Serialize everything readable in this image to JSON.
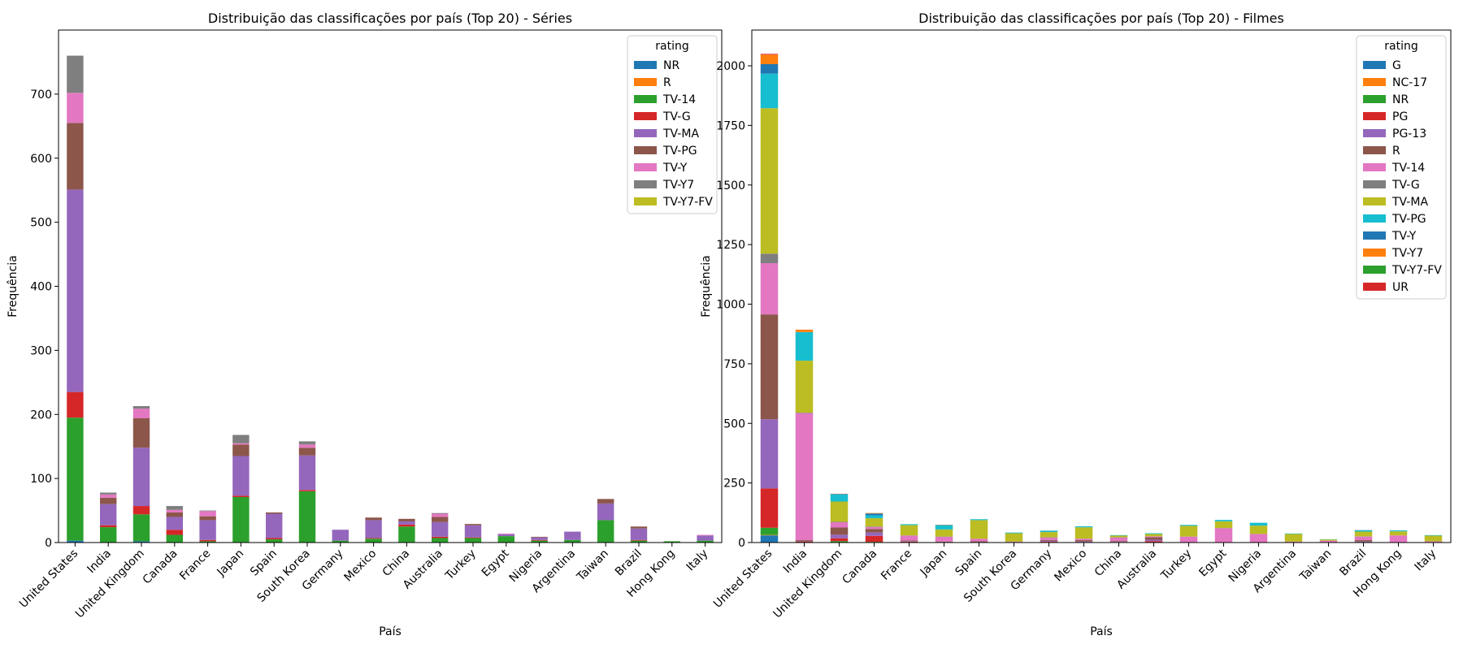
{
  "colors": {
    "tab10": [
      "#1f77b4",
      "#ff7f0e",
      "#2ca02c",
      "#d62728",
      "#9467bd",
      "#8c564b",
      "#e377c2",
      "#7f7f7f",
      "#bcbd22",
      "#17becf"
    ]
  },
  "chart_data": [
    {
      "type": "bar",
      "stacked": true,
      "title": "Distribuição das classificações por país (Top 20) - Séries",
      "xlabel": "País",
      "ylabel": "Frequência",
      "ylim": [
        0,
        800
      ],
      "yticks": [
        0,
        100,
        200,
        300,
        400,
        500,
        600,
        700
      ],
      "grid": false,
      "legend_title": "rating",
      "legend_position": "top-right",
      "categories": [
        "United States",
        "India",
        "United Kingdom",
        "Canada",
        "France",
        "Japan",
        "Spain",
        "South Korea",
        "Germany",
        "Mexico",
        "China",
        "Australia",
        "Turkey",
        "Egypt",
        "Nigeria",
        "Argentina",
        "Taiwan",
        "Brazil",
        "Hong Kong",
        "Italy"
      ],
      "series": [
        {
          "name": "NR",
          "values": [
            3,
            0,
            2,
            0,
            0,
            0,
            0,
            0,
            0,
            0,
            0,
            0,
            0,
            0,
            0,
            0,
            0,
            0,
            0,
            0
          ]
        },
        {
          "name": "R",
          "values": [
            0,
            0,
            0,
            0,
            0,
            0,
            0,
            0,
            0,
            0,
            0,
            0,
            0,
            0,
            0,
            0,
            0,
            0,
            0,
            0
          ]
        },
        {
          "name": "TV-14",
          "values": [
            192,
            24,
            42,
            12,
            2,
            71,
            5,
            80,
            3,
            6,
            25,
            7,
            7,
            10,
            3,
            4,
            35,
            3,
            2,
            3
          ]
        },
        {
          "name": "TV-G",
          "values": [
            40,
            3,
            13,
            8,
            2,
            2,
            2,
            2,
            0,
            1,
            3,
            2,
            1,
            0,
            1,
            0,
            0,
            1,
            0,
            0
          ]
        },
        {
          "name": "TV-MA",
          "values": [
            316,
            33,
            91,
            20,
            31,
            62,
            38,
            54,
            17,
            28,
            5,
            23,
            19,
            3,
            4,
            13,
            26,
            18,
            0,
            8
          ]
        },
        {
          "name": "TV-PG",
          "values": [
            104,
            10,
            46,
            7,
            6,
            18,
            2,
            12,
            0,
            4,
            4,
            8,
            2,
            0,
            1,
            0,
            7,
            3,
            0,
            0
          ]
        },
        {
          "name": "TV-Y",
          "values": [
            47,
            5,
            15,
            4,
            8,
            2,
            0,
            5,
            0,
            0,
            0,
            5,
            0,
            1,
            0,
            0,
            0,
            0,
            0,
            1
          ]
        },
        {
          "name": "TV-Y7",
          "values": [
            58,
            3,
            4,
            6,
            1,
            13,
            0,
            5,
            0,
            0,
            0,
            1,
            0,
            0,
            0,
            0,
            0,
            0,
            0,
            0
          ]
        },
        {
          "name": "TV-Y7-FV",
          "values": [
            0,
            0,
            0,
            0,
            0,
            0,
            0,
            0,
            0,
            0,
            0,
            0,
            0,
            0,
            0,
            0,
            0,
            0,
            0,
            0
          ]
        }
      ]
    },
    {
      "type": "bar",
      "stacked": true,
      "title": "Distribuição das classificações por país (Top 20) - Filmes",
      "xlabel": "País",
      "ylabel": "Frequência",
      "ylim": [
        0,
        2150
      ],
      "yticks": [
        0,
        250,
        500,
        750,
        1000,
        1250,
        1500,
        1750,
        2000
      ],
      "grid": false,
      "legend_title": "rating",
      "legend_position": "top-right",
      "categories": [
        "United States",
        "India",
        "United Kingdom",
        "Canada",
        "France",
        "Japan",
        "Spain",
        "South Korea",
        "Germany",
        "Mexico",
        "China",
        "Australia",
        "Turkey",
        "Egypt",
        "Nigeria",
        "Argentina",
        "Taiwan",
        "Brazil",
        "Hong Kong",
        "Italy"
      ],
      "series": [
        {
          "name": "G",
          "values": [
            30,
            0,
            1,
            1,
            0,
            0,
            0,
            0,
            1,
            0,
            0,
            0,
            0,
            0,
            0,
            0,
            0,
            0,
            0,
            0
          ]
        },
        {
          "name": "NC-17",
          "values": [
            2,
            0,
            0,
            0,
            0,
            0,
            0,
            0,
            0,
            0,
            0,
            0,
            0,
            0,
            0,
            0,
            0,
            0,
            0,
            0
          ]
        },
        {
          "name": "NR",
          "values": [
            30,
            1,
            5,
            2,
            1,
            0,
            0,
            0,
            1,
            0,
            0,
            0,
            0,
            0,
            0,
            0,
            0,
            0,
            0,
            0
          ]
        },
        {
          "name": "PG",
          "values": [
            165,
            3,
            12,
            25,
            3,
            1,
            1,
            0,
            2,
            2,
            2,
            6,
            0,
            0,
            0,
            0,
            0,
            2,
            0,
            0
          ]
        },
        {
          "name": "PG-13",
          "values": [
            290,
            1,
            15,
            14,
            2,
            1,
            1,
            1,
            3,
            2,
            1,
            6,
            0,
            0,
            0,
            0,
            0,
            2,
            0,
            1
          ]
        },
        {
          "name": "R",
          "values": [
            440,
            5,
            30,
            15,
            3,
            2,
            3,
            1,
            4,
            6,
            3,
            10,
            0,
            0,
            0,
            1,
            0,
            6,
            1,
            1
          ]
        },
        {
          "name": "TV-14",
          "values": [
            215,
            533,
            22,
            8,
            20,
            20,
            11,
            2,
            10,
            6,
            15,
            4,
            25,
            60,
            36,
            3,
            8,
            15,
            29,
            3
          ]
        },
        {
          "name": "TV-G",
          "values": [
            40,
            2,
            2,
            2,
            1,
            1,
            0,
            0,
            1,
            0,
            1,
            0,
            0,
            1,
            0,
            0,
            0,
            1,
            0,
            0
          ]
        },
        {
          "name": "TV-MA",
          "values": [
            610,
            218,
            85,
            35,
            43,
            30,
            78,
            35,
            22,
            48,
            7,
            10,
            45,
            28,
            35,
            32,
            5,
            20,
            17,
            24
          ]
        },
        {
          "name": "TV-PG",
          "values": [
            145,
            120,
            30,
            12,
            4,
            18,
            4,
            3,
            5,
            4,
            2,
            3,
            4,
            6,
            12,
            2,
            1,
            5,
            4,
            2
          ]
        },
        {
          "name": "TV-Y",
          "values": [
            40,
            0,
            2,
            8,
            0,
            1,
            0,
            0,
            1,
            0,
            0,
            0,
            0,
            0,
            0,
            0,
            0,
            1,
            0,
            0
          ]
        },
        {
          "name": "TV-Y7",
          "values": [
            40,
            10,
            1,
            2,
            0,
            1,
            0,
            0,
            0,
            0,
            0,
            0,
            0,
            0,
            0,
            0,
            0,
            0,
            0,
            0
          ]
        },
        {
          "name": "TV-Y7-FV",
          "values": [
            0,
            0,
            0,
            0,
            0,
            0,
            0,
            0,
            0,
            0,
            0,
            0,
            0,
            0,
            0,
            0,
            0,
            0,
            0,
            0
          ]
        },
        {
          "name": "UR",
          "values": [
            3,
            0,
            0,
            0,
            0,
            0,
            0,
            0,
            0,
            0,
            0,
            0,
            0,
            0,
            0,
            0,
            0,
            0,
            0,
            0
          ]
        }
      ]
    }
  ]
}
